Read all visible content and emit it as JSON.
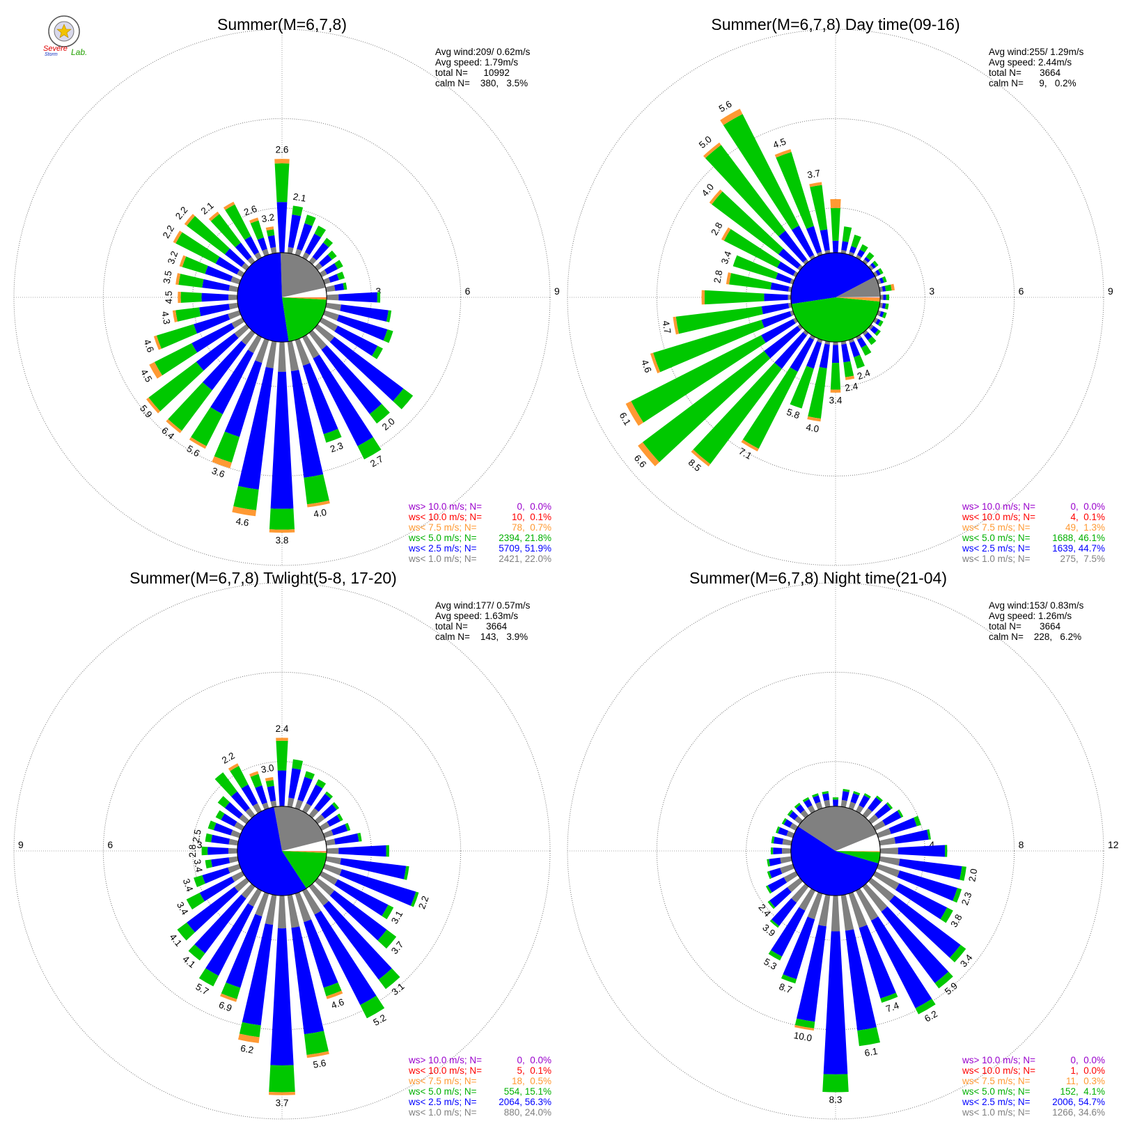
{
  "logo": {
    "top_text": "Severe",
    "bottom_text": "Storm",
    "suffix": "Lab."
  },
  "colors": {
    "lt1": "#808080",
    "lt2_5": "#0000ff",
    "lt5": "#00c800",
    "lt7_5": "#ff9933",
    "lt10": "#ff0000",
    "gt10": "#9900cc",
    "calm_wedge": "#808080",
    "ring": "#666666"
  },
  "legend_labels": [
    "ws> 10.0 m/s; N=",
    "ws< 10.0 m/s; N=",
    "ws< 7.5 m/s; N=",
    "ws< 5.0 m/s; N=",
    "ws< 2.5 m/s; N=",
    "ws< 1.0 m/s; N="
  ],
  "chart_data": [
    {
      "type": "windrose",
      "title": "Summer(M=6,7,8)",
      "stats": [
        "Avg wind:209/ 0.62m/s",
        "Avg speed: 1.79m/s",
        "total N=      10992",
        "calm N=    380,   3.5%"
      ],
      "ring_labels": [
        "3",
        "6",
        "9"
      ],
      "ring_values": [
        3,
        6,
        9
      ],
      "ring_label_side": "right",
      "hub_radius_pct": 1.5,
      "pie_fractions": {
        "calm": 0.035,
        "lt1": 0.22,
        "lt2_5": 0.519,
        "lt5": 0.218,
        "lt7_5": 0.007,
        "lt10": 0.001
      },
      "legend_counts": [
        "0,  0.0%",
        "10,  0.1%",
        "78,  0.7%",
        "2394, 21.8%",
        "5709, 51.9%",
        "2421, 22.0%"
      ],
      "sector_step_deg": 10,
      "sectors": [
        [
          0,
          1.7,
          1.3,
          0.15
        ],
        [
          0.2,
          1.1,
          0.3,
          0
        ],
        [
          0.2,
          0.9,
          0.3,
          0
        ],
        [
          0.2,
          0.7,
          0.3,
          0
        ],
        [
          0.2,
          0.6,
          0.2,
          0
        ],
        [
          0.2,
          0.4,
          0.2,
          0
        ],
        [
          0.2,
          0.4,
          0.2,
          0
        ],
        [
          0.2,
          0.3,
          0.2,
          0
        ],
        [
          0.3,
          0.3,
          0.1,
          0
        ],
        [
          0.4,
          1.3,
          0.1,
          0
        ],
        [
          0.5,
          1.6,
          0.1,
          0
        ],
        [
          0.5,
          1.7,
          0.2,
          0
        ],
        [
          0.6,
          1.5,
          0.2,
          0
        ],
        [
          0.7,
          2.9,
          0.4,
          0
        ],
        [
          0.7,
          2.7,
          0.4,
          0
        ],
        [
          0.8,
          3.3,
          0.5,
          0
        ],
        [
          0.9,
          2.4,
          0.3,
          0
        ],
        [
          1.0,
          3.6,
          0.9,
          0.1
        ],
        [
          1.0,
          4.6,
          0.7,
          0.1
        ],
        [
          0.9,
          4.1,
          0.7,
          0.2
        ],
        [
          0.8,
          2.6,
          0.9,
          0.2
        ],
        [
          0.6,
          2.3,
          1.2,
          0.1
        ],
        [
          0.5,
          1.9,
          1.7,
          0.1
        ],
        [
          0.5,
          1.6,
          2.0,
          0.1
        ],
        [
          0.4,
          1.5,
          1.4,
          0.2
        ],
        [
          0.4,
          1.2,
          1.3,
          0.1
        ],
        [
          0.3,
          1.0,
          0.8,
          0.1
        ],
        [
          0.3,
          0.9,
          0.7,
          0.1
        ],
        [
          0.3,
          0.9,
          0.8,
          0.1
        ],
        [
          0.3,
          0.9,
          0.8,
          0.1
        ],
        [
          0.2,
          0.8,
          1.5,
          0.1
        ],
        [
          0.2,
          0.7,
          1.6,
          0.1
        ],
        [
          0.2,
          0.6,
          1.2,
          0.1
        ],
        [
          0.2,
          0.6,
          1.2,
          0.1
        ],
        [
          0.2,
          0.4,
          0.6,
          0.1
        ],
        [
          0.2,
          0.4,
          0.2,
          0.1
        ]
      ],
      "bar_labels": [
        [
          140,
          "2.0"
        ],
        [
          150,
          "2.7"
        ],
        [
          160,
          "2.3"
        ],
        [
          170,
          "4.0"
        ],
        [
          180,
          "3.8"
        ],
        [
          190,
          "4.6"
        ],
        [
          200,
          "3.6"
        ],
        [
          210,
          "5.6"
        ],
        [
          220,
          "6.4"
        ],
        [
          230,
          "5.9"
        ],
        [
          240,
          "4.5"
        ],
        [
          250,
          "4.6"
        ],
        [
          260,
          "4.3"
        ],
        [
          270,
          "4.5"
        ],
        [
          280,
          "3.5"
        ],
        [
          290,
          "3.2"
        ],
        [
          300,
          "2.2"
        ],
        [
          310,
          "2.2"
        ],
        [
          320,
          "2.1"
        ],
        [
          340,
          "2.6"
        ],
        [
          350,
          "3.2"
        ],
        [
          0,
          "2.6"
        ],
        [
          10,
          "2.1"
        ]
      ]
    },
    {
      "type": "windrose",
      "title": "Summer(M=6,7,8) Day time(09-16)",
      "stats": [
        "Avg wind:255/ 1.29m/s",
        "Avg speed: 2.44m/s",
        "total N=       3664",
        "calm N=      9,   0.2%"
      ],
      "ring_labels": [
        "3",
        "6",
        "9"
      ],
      "ring_values": [
        3,
        6,
        9
      ],
      "ring_label_side": "right",
      "hub_radius_pct": 1.5,
      "pie_fractions": {
        "calm": 0.002,
        "lt1": 0.075,
        "lt2_5": 0.447,
        "lt5": 0.461,
        "lt7_5": 0.013,
        "lt10": 0.001
      },
      "legend_counts": [
        "0,  0.0%",
        "4,  0.1%",
        "49,  1.3%",
        "1688, 46.1%",
        "1639, 44.7%",
        "275,  7.5%"
      ],
      "sector_step_deg": 10,
      "sectors": [
        [
          0,
          0.4,
          1.1,
          0.3
        ],
        [
          0.1,
          0.3,
          0.5,
          0
        ],
        [
          0.1,
          0.2,
          0.4,
          0
        ],
        [
          0.1,
          0.2,
          0.2,
          0
        ],
        [
          0.1,
          0.1,
          0.2,
          0
        ],
        [
          0.1,
          0.1,
          0.1,
          0
        ],
        [
          0.1,
          0.1,
          0.1,
          0
        ],
        [
          0.1,
          0.1,
          0.1,
          0
        ],
        [
          0.1,
          0.1,
          0.2,
          0.1
        ],
        [
          0.1,
          0.1,
          0.1,
          0
        ],
        [
          0.1,
          0.1,
          0.1,
          0
        ],
        [
          0.1,
          0.1,
          0.1,
          0
        ],
        [
          0.1,
          0.1,
          0.1,
          0
        ],
        [
          0.1,
          0.2,
          0.1,
          0
        ],
        [
          0.1,
          0.2,
          0.2,
          0
        ],
        [
          0.1,
          0.3,
          0.3,
          0
        ],
        [
          0.1,
          0.5,
          0.4,
          0
        ],
        [
          0.1,
          0.6,
          0.5,
          0.1
        ],
        [
          0.1,
          0.6,
          0.9,
          0.1
        ],
        [
          0.1,
          0.8,
          1.7,
          0.1
        ],
        [
          0.1,
          0.9,
          1.4,
          0
        ],
        [
          0.1,
          1.2,
          2.9,
          0.1
        ],
        [
          0.1,
          1.4,
          4.0,
          0.1
        ],
        [
          0.1,
          1.4,
          5.1,
          0.2
        ],
        [
          0.1,
          1.2,
          4.9,
          0.2
        ],
        [
          0.1,
          1.0,
          3.8,
          0.1
        ],
        [
          0.1,
          0.9,
          2.9,
          0.1
        ],
        [
          0.1,
          0.8,
          2.0,
          0.1
        ],
        [
          0.1,
          0.6,
          1.4,
          0.1
        ],
        [
          0.1,
          0.5,
          1.5,
          0
        ],
        [
          0.1,
          0.6,
          2.0,
          0.1
        ],
        [
          0.1,
          0.8,
          2.8,
          0.1
        ],
        [
          0.1,
          1.2,
          3.6,
          0.1
        ],
        [
          0.1,
          1.1,
          4.2,
          0.2
        ],
        [
          0.1,
          0.9,
          2.6,
          0.1
        ],
        [
          0.1,
          0.7,
          1.5,
          0.1
        ]
      ],
      "bar_labels": [
        [
          160,
          "2.4"
        ],
        [
          170,
          "2.4"
        ],
        [
          180,
          "3.4"
        ],
        [
          190,
          "4.0"
        ],
        [
          200,
          "5.8"
        ],
        [
          210,
          "7.1"
        ],
        [
          220,
          "8.5"
        ],
        [
          230,
          "6.6"
        ],
        [
          240,
          "6.1"
        ],
        [
          250,
          "4.6"
        ],
        [
          260,
          "4.7"
        ],
        [
          280,
          "2.8"
        ],
        [
          290,
          "3.4"
        ],
        [
          300,
          "2.8"
        ],
        [
          310,
          "4.0"
        ],
        [
          320,
          "5.0"
        ],
        [
          330,
          "5.6"
        ],
        [
          340,
          "4.5"
        ],
        [
          350,
          "3.7"
        ]
      ]
    },
    {
      "type": "windrose",
      "title": "Summer(M=6,7,8) Twlight(5-8, 17-20)",
      "stats": [
        "Avg wind:177/ 0.57m/s",
        "Avg speed: 1.63m/s",
        "total N=       3664",
        "calm N=    143,   3.9%"
      ],
      "ring_labels": [
        "3",
        "6",
        "9"
      ],
      "ring_values": [
        3,
        6,
        9
      ],
      "ring_label_side": "left",
      "hub_radius_pct": 1.5,
      "pie_fractions": {
        "calm": 0.039,
        "lt1": 0.24,
        "lt2_5": 0.563,
        "lt5": 0.151,
        "lt7_5": 0.005,
        "lt10": 0.001
      },
      "legend_counts": [
        "0,  0.0%",
        "5,  0.1%",
        "18,  0.5%",
        "554, 15.1%",
        "2064, 56.3%",
        "880, 24.0%"
      ],
      "sector_step_deg": 10,
      "sectors": [
        [
          0,
          1.2,
          1.0,
          0.1
        ],
        [
          0.3,
          1.0,
          0.3,
          0
        ],
        [
          0.3,
          0.8,
          0.2,
          0
        ],
        [
          0.3,
          0.7,
          0.2,
          0
        ],
        [
          0.3,
          0.6,
          0.1,
          0
        ],
        [
          0.3,
          0.5,
          0.1,
          0
        ],
        [
          0.3,
          0.4,
          0.1,
          0
        ],
        [
          0.3,
          0.5,
          0.1,
          0
        ],
        [
          0.3,
          0.8,
          0.1,
          0
        ],
        [
          0.4,
          1.6,
          0.1,
          0
        ],
        [
          0.5,
          2.2,
          0.1,
          0
        ],
        [
          0.6,
          2.6,
          0.1,
          0
        ],
        [
          0.6,
          1.9,
          0.2,
          0
        ],
        [
          0.7,
          2.2,
          0.4,
          0
        ],
        [
          0.8,
          3.1,
          0.4,
          0
        ],
        [
          0.9,
          3.4,
          0.5,
          0
        ],
        [
          1.0,
          2.3,
          0.3,
          0.1
        ],
        [
          1.1,
          3.6,
          0.7,
          0.1
        ],
        [
          1.1,
          4.6,
          0.9,
          0.1
        ],
        [
          1.0,
          3.4,
          0.4,
          0.2
        ],
        [
          0.8,
          2.5,
          0.4,
          0.1
        ],
        [
          0.6,
          2.6,
          0.4,
          0
        ],
        [
          0.5,
          2.3,
          0.3,
          0
        ],
        [
          0.5,
          2.0,
          0.4,
          0
        ],
        [
          0.4,
          1.2,
          0.5,
          0
        ],
        [
          0.4,
          0.9,
          0.3,
          0
        ],
        [
          0.3,
          0.6,
          0.2,
          0
        ],
        [
          0.3,
          0.7,
          0.2,
          0
        ],
        [
          0.3,
          0.6,
          0.2,
          0
        ],
        [
          0.3,
          0.6,
          0.2,
          0
        ],
        [
          0.3,
          0.5,
          0.2,
          0
        ],
        [
          0.3,
          0.6,
          0.3,
          0
        ],
        [
          0.3,
          0.7,
          0.8,
          0
        ],
        [
          0.3,
          0.7,
          0.7,
          0.1
        ],
        [
          0.2,
          0.6,
          0.4,
          0.1
        ],
        [
          0.2,
          0.5,
          0.2,
          0.1
        ]
      ],
      "bar_labels": [
        [
          110,
          "2.2"
        ],
        [
          120,
          "3.1"
        ],
        [
          130,
          "3.7"
        ],
        [
          140,
          "3.1"
        ],
        [
          150,
          "5.2"
        ],
        [
          160,
          "4.6"
        ],
        [
          170,
          "5.6"
        ],
        [
          180,
          "3.7"
        ],
        [
          190,
          "6.2"
        ],
        [
          200,
          "6.9"
        ],
        [
          210,
          "5.7"
        ],
        [
          220,
          "4.1"
        ],
        [
          230,
          "4.1"
        ],
        [
          240,
          "3.4"
        ],
        [
          250,
          "3.4"
        ],
        [
          260,
          "3.4"
        ],
        [
          270,
          "2.8"
        ],
        [
          280,
          "2.5"
        ],
        [
          330,
          "2.2"
        ],
        [
          350,
          "3.0"
        ],
        [
          0,
          "2.4"
        ]
      ]
    },
    {
      "type": "windrose",
      "title": "Summer(M=6,7,8) Night time(21-04)",
      "stats": [
        "Avg wind:153/ 0.83m/s",
        "Avg speed: 1.26m/s",
        "total N=       3664",
        "calm N=    228,   6.2%"
      ],
      "ring_labels": [
        "4",
        "8",
        "12"
      ],
      "ring_values": [
        4,
        8,
        12
      ],
      "ring_label_side": "right",
      "hub_radius_pct": 2,
      "pie_fractions": {
        "calm": 0.062,
        "lt1": 0.346,
        "lt2_5": 0.547,
        "lt5": 0.041,
        "lt7_5": 0.003,
        "lt10": 0
      },
      "legend_counts": [
        "0,  0.0%",
        "1,  0.0%",
        "11,  0.3%",
        "152,  4.1%",
        "2006, 54.7%",
        "1266, 34.6%"
      ],
      "sector_step_deg": 10,
      "sectors": [
        [
          0,
          0.3,
          0.1,
          0
        ],
        [
          0.3,
          0.4,
          0.1,
          0
        ],
        [
          0.3,
          0.4,
          0.1,
          0
        ],
        [
          0.3,
          0.5,
          0.1,
          0
        ],
        [
          0.4,
          0.6,
          0.1,
          0
        ],
        [
          0.4,
          0.7,
          0.1,
          0
        ],
        [
          0.5,
          0.8,
          0.1,
          0
        ],
        [
          0.6,
          1.2,
          0.2,
          0
        ],
        [
          0.7,
          1.5,
          0.1,
          0
        ],
        [
          0.8,
          2.1,
          0.1,
          0
        ],
        [
          0.9,
          2.8,
          0.2,
          0
        ],
        [
          1.0,
          2.7,
          0.2,
          0
        ],
        [
          1.2,
          2.4,
          0.3,
          0
        ],
        [
          1.3,
          3.7,
          0.3,
          0
        ],
        [
          1.4,
          4.0,
          0.3,
          0
        ],
        [
          1.5,
          4.4,
          0.3,
          0
        ],
        [
          1.6,
          3.3,
          0.2,
          0
        ],
        [
          1.6,
          4.5,
          0.7,
          0
        ],
        [
          1.6,
          6.4,
          0.8,
          0
        ],
        [
          1.4,
          4.3,
          0.3,
          0.1
        ],
        [
          1.2,
          2.8,
          0.2,
          0
        ],
        [
          1.0,
          2.3,
          0.2,
          0
        ],
        [
          0.9,
          1.3,
          0.1,
          0
        ],
        [
          0.7,
          1.0,
          0.1,
          0
        ],
        [
          0.6,
          0.8,
          0.1,
          0
        ],
        [
          0.6,
          0.5,
          0.1,
          0
        ],
        [
          0.5,
          0.5,
          0.1,
          0
        ],
        [
          0.4,
          0.4,
          0.1,
          0
        ],
        [
          0.4,
          0.4,
          0.1,
          0
        ],
        [
          0.3,
          0.4,
          0.1,
          0
        ],
        [
          0.3,
          0.3,
          0.1,
          0
        ],
        [
          0.3,
          0.3,
          0.1,
          0
        ],
        [
          0.3,
          0.3,
          0.1,
          0
        ],
        [
          0.3,
          0.3,
          0.1,
          0
        ],
        [
          0.3,
          0.3,
          0.1,
          0
        ],
        [
          0.3,
          0.3,
          0.1,
          0
        ]
      ],
      "bar_labels": [
        [
          100,
          "2.0"
        ],
        [
          110,
          "2.3"
        ],
        [
          120,
          "3.8"
        ],
        [
          130,
          "3.4"
        ],
        [
          140,
          "5.9"
        ],
        [
          150,
          "6.2"
        ],
        [
          160,
          "7.4"
        ],
        [
          170,
          "6.1"
        ],
        [
          180,
          "8.3"
        ],
        [
          190,
          "10.0"
        ],
        [
          200,
          "8.7"
        ],
        [
          210,
          "5.3"
        ],
        [
          220,
          "3.9"
        ],
        [
          230,
          "2.4"
        ]
      ]
    }
  ]
}
